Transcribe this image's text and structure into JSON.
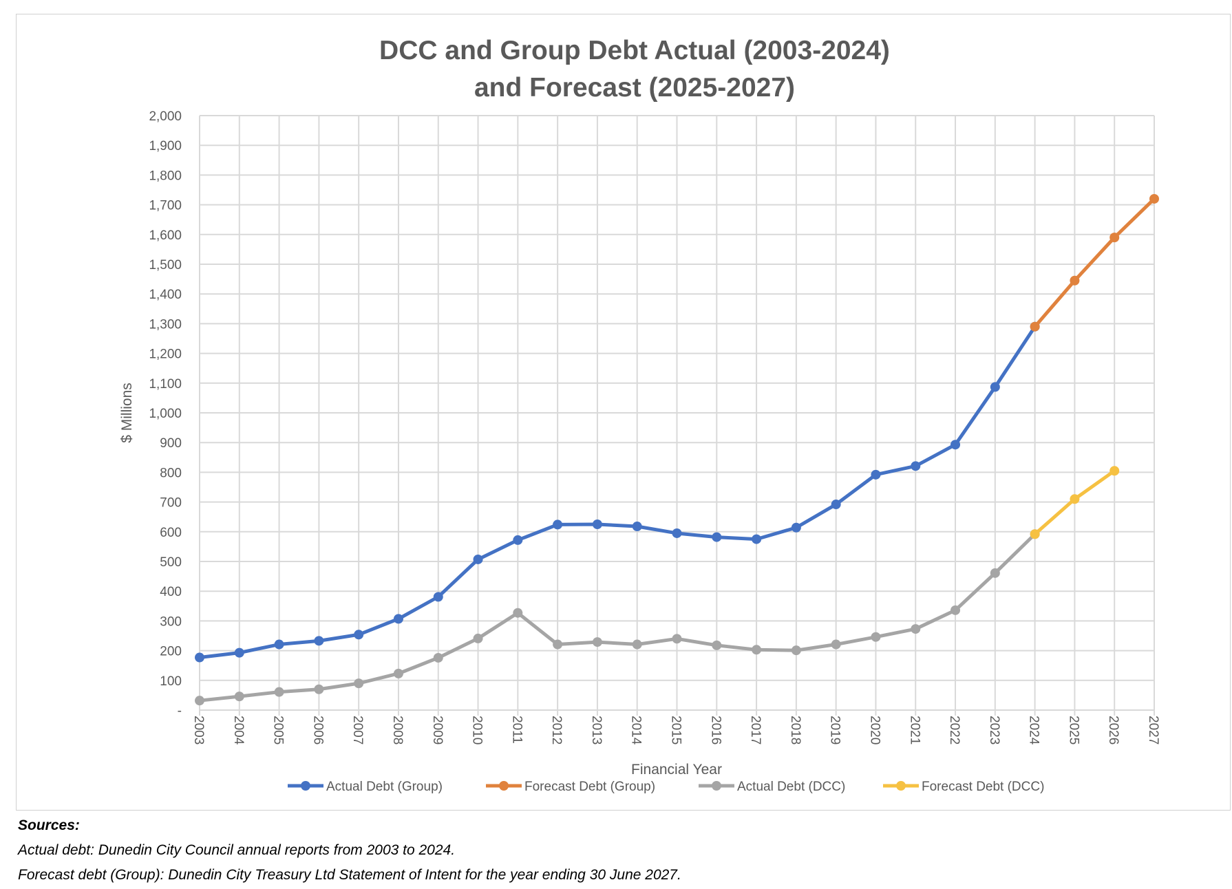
{
  "chart_data": {
    "type": "line",
    "title_lines": [
      "DCC and Group Debt Actual (2003-2024)",
      "and Forecast (2025-2027)"
    ],
    "xlabel": "Financial Year",
    "ylabel": "$ Millions",
    "ylim": [
      0,
      2000
    ],
    "ytick_step": 100,
    "ytick_labels": [
      "-",
      "100",
      "200",
      "300",
      "400",
      "500",
      "600",
      "700",
      "800",
      "900",
      "1,000",
      "1,100",
      "1,200",
      "1,300",
      "1,400",
      "1,500",
      "1,600",
      "1,700",
      "1,800",
      "1,900",
      "2,000"
    ],
    "x": [
      2003,
      2004,
      2005,
      2006,
      2007,
      2008,
      2009,
      2010,
      2011,
      2012,
      2013,
      2014,
      2015,
      2016,
      2017,
      2018,
      2019,
      2020,
      2021,
      2022,
      2023,
      2024,
      2025,
      2026,
      2027
    ],
    "grid": true,
    "legend_position": "bottom",
    "series": [
      {
        "name": "Actual Debt (Group)",
        "color": "#4472C4",
        "x": [
          2003,
          2004,
          2005,
          2006,
          2007,
          2008,
          2009,
          2010,
          2011,
          2012,
          2013,
          2014,
          2015,
          2016,
          2017,
          2018,
          2019,
          2020,
          2021,
          2022,
          2023,
          2024
        ],
        "values": [
          177,
          193,
          221,
          233,
          254,
          307,
          381,
          507,
          572,
          624,
          625,
          618,
          595,
          582,
          575,
          614,
          692,
          792,
          821,
          893,
          1087,
          1290
        ]
      },
      {
        "name": "Forecast Debt (Group)",
        "color": "#E0823D",
        "x": [
          2024,
          2025,
          2026,
          2027
        ],
        "values": [
          1290,
          1445,
          1590,
          1720
        ]
      },
      {
        "name": "Actual Debt (DCC)",
        "color": "#A5A5A5",
        "x": [
          2003,
          2004,
          2005,
          2006,
          2007,
          2008,
          2009,
          2010,
          2011,
          2012,
          2013,
          2014,
          2015,
          2016,
          2017,
          2018,
          2019,
          2020,
          2021,
          2022,
          2023,
          2024
        ],
        "values": [
          32,
          46,
          61,
          70,
          90,
          123,
          176,
          241,
          327,
          221,
          229,
          221,
          240,
          218,
          203,
          201,
          221,
          246,
          273,
          336,
          461,
          592
        ]
      },
      {
        "name": "Forecast Debt (DCC)",
        "color": "#F6C142",
        "x": [
          2024,
          2025,
          2026
        ],
        "values": [
          592,
          710,
          805
        ]
      }
    ]
  },
  "sources": {
    "heading": "Sources:",
    "lines": [
      "Actual debt: Dunedin City Council annual reports from 2003 to 2024.",
      "Forecast debt (Group): Dunedin City Treasury Ltd Statement of Intent for the year ending 30 June 2027."
    ]
  }
}
